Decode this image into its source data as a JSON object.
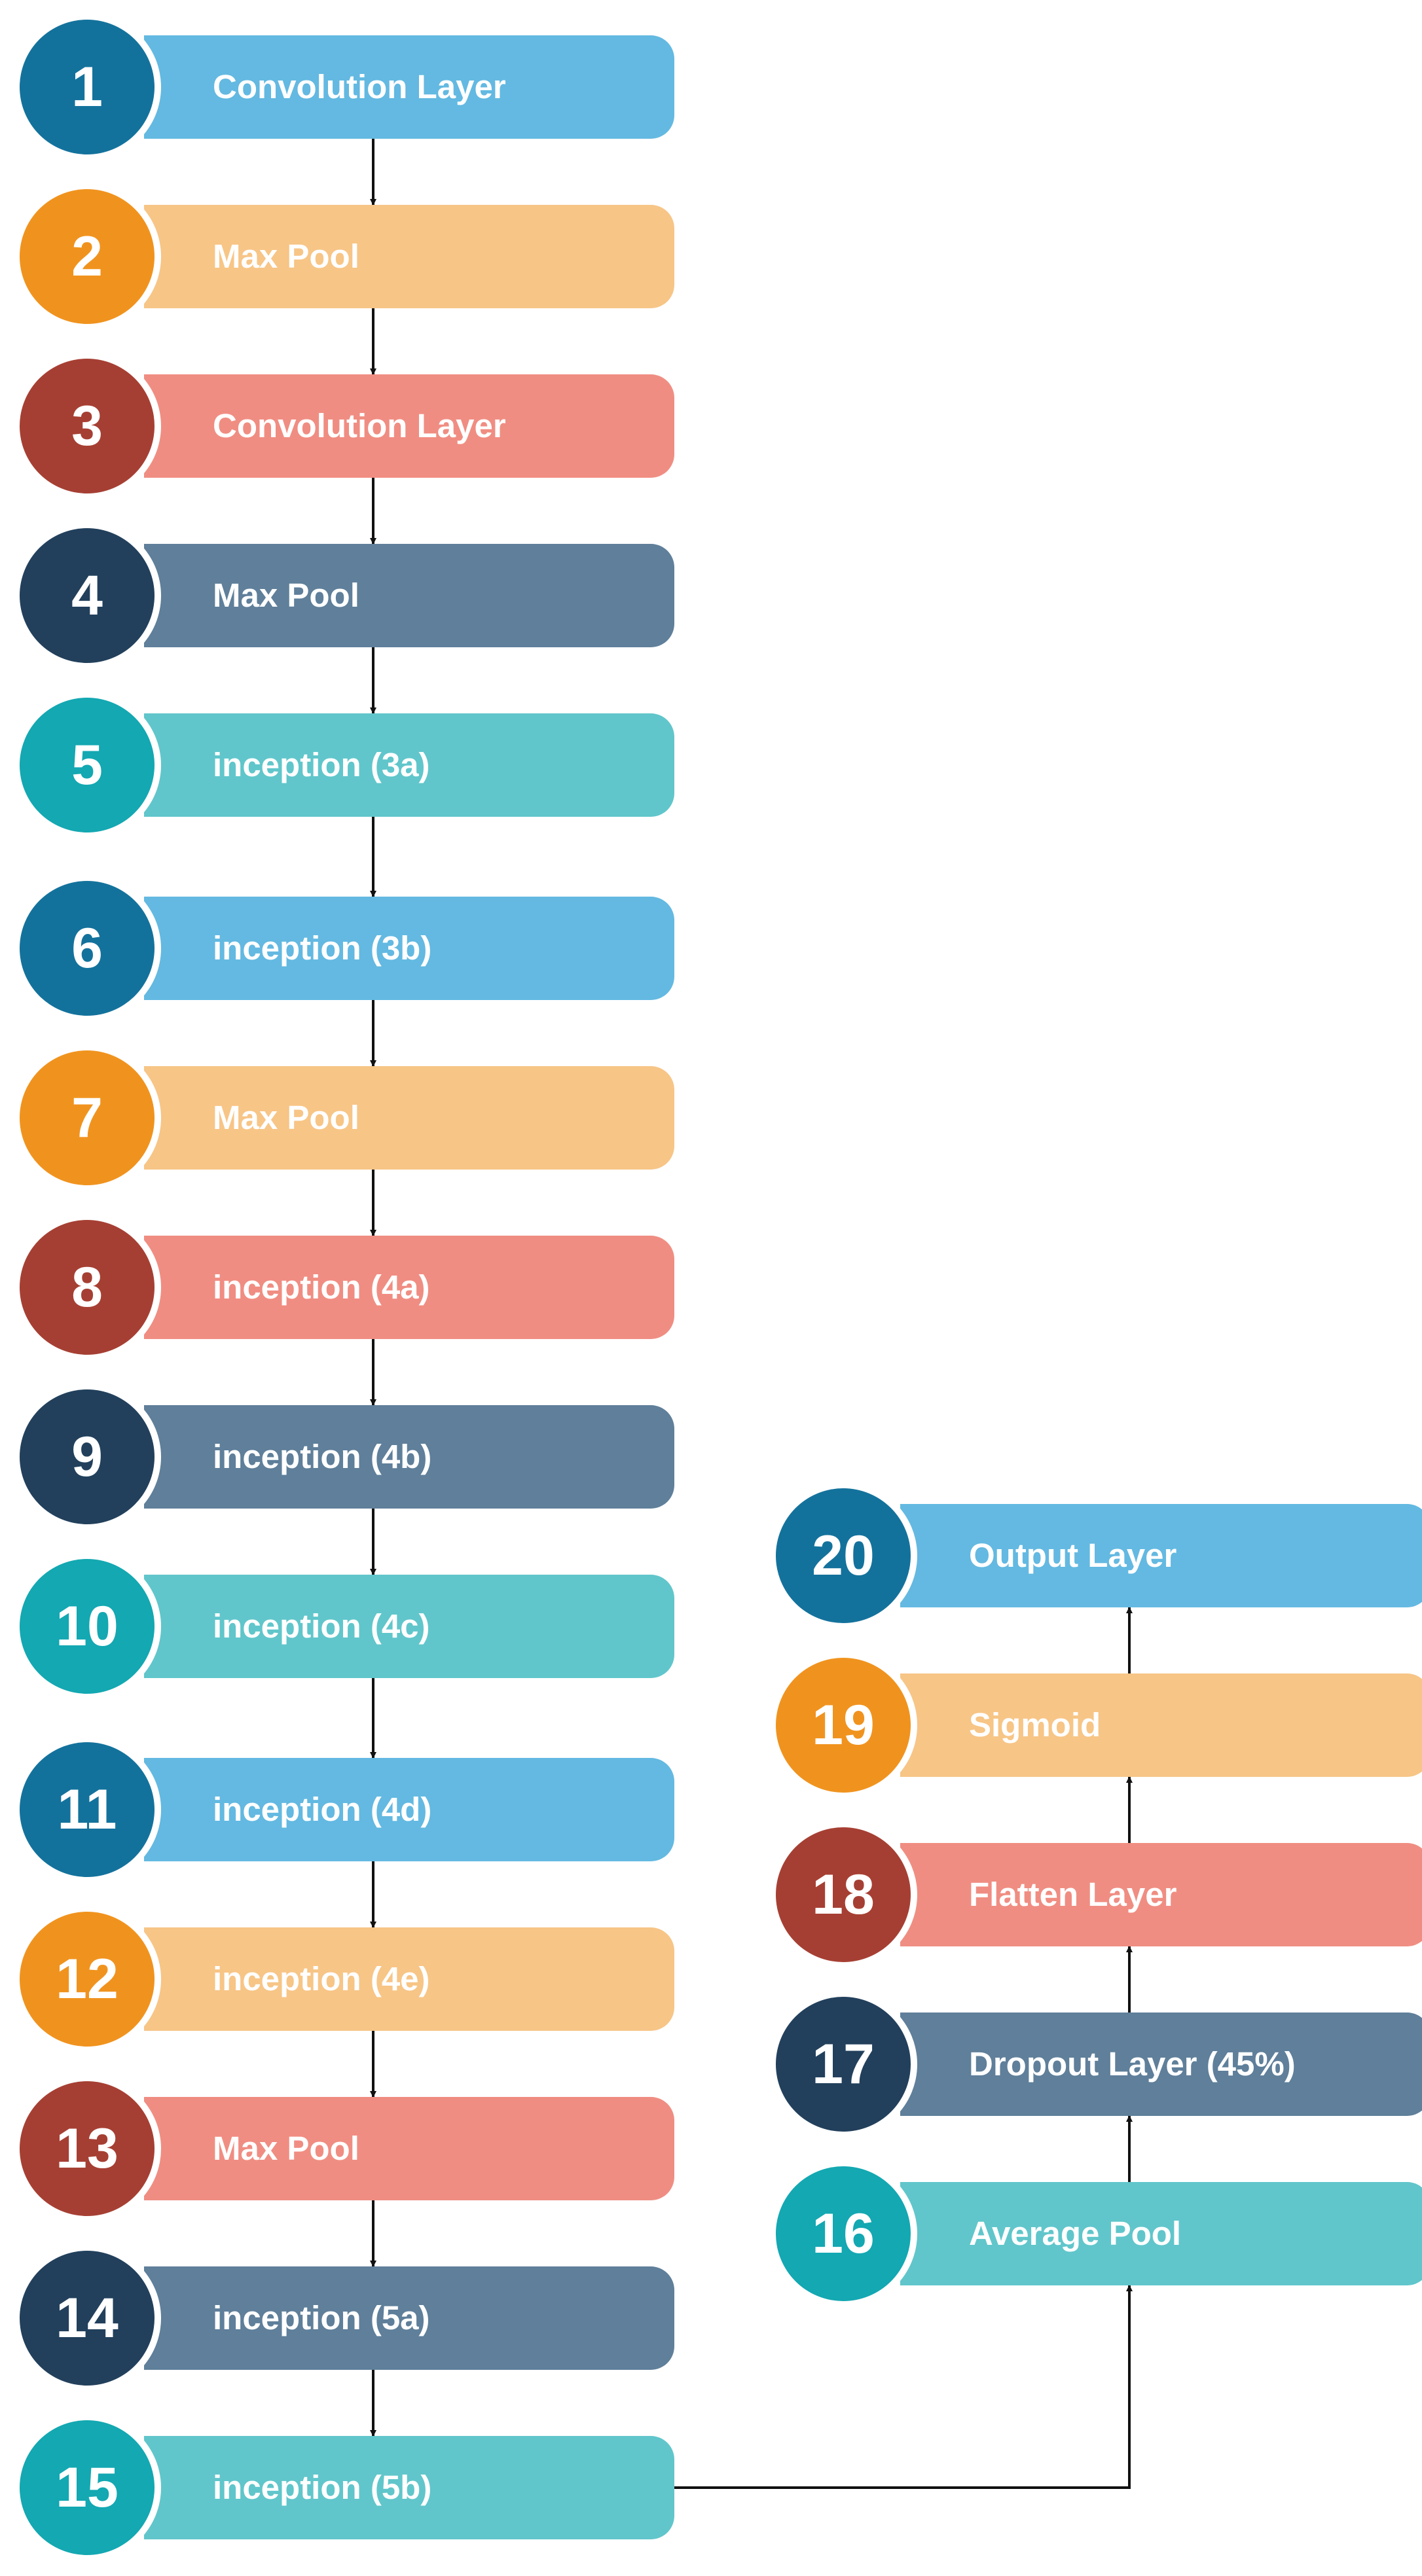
{
  "palette": {
    "blue": {
      "dark": "#13729c",
      "light": "#63b9e1"
    },
    "orange": {
      "dark": "#f0931e",
      "light": "#f7c586"
    },
    "red": {
      "dark": "#a63f33",
      "light": "#f08d82"
    },
    "navy": {
      "dark": "#22405c",
      "light": "#5f7f9a"
    },
    "teal": {
      "dark": "#13a8b2",
      "light": "#60c6cb"
    }
  },
  "arrow_color": "#111111",
  "steps": [
    {
      "number": "1",
      "label": "Convolution Layer",
      "color": "blue"
    },
    {
      "number": "2",
      "label": "Max Pool",
      "color": "orange"
    },
    {
      "number": "3",
      "label": "Convolution Layer",
      "color": "red"
    },
    {
      "number": "4",
      "label": "Max Pool",
      "color": "navy"
    },
    {
      "number": "5",
      "label": "inception (3a)",
      "color": "teal"
    },
    {
      "number": "6",
      "label": "inception (3b)",
      "color": "blue"
    },
    {
      "number": "7",
      "label": "Max Pool",
      "color": "orange"
    },
    {
      "number": "8",
      "label": "inception (4a)",
      "color": "red"
    },
    {
      "number": "9",
      "label": "inception (4b)",
      "color": "navy"
    },
    {
      "number": "10",
      "label": "inception (4c)",
      "color": "teal"
    },
    {
      "number": "11",
      "label": "inception (4d)",
      "color": "blue"
    },
    {
      "number": "12",
      "label": "inception (4e)",
      "color": "orange"
    },
    {
      "number": "13",
      "label": "Max Pool",
      "color": "red"
    },
    {
      "number": "14",
      "label": "inception (5a)",
      "color": "navy"
    },
    {
      "number": "15",
      "label": "inception (5b)",
      "color": "teal"
    },
    {
      "number": "16",
      "label": "Average Pool",
      "color": "teal"
    },
    {
      "number": "17",
      "label": "Dropout Layer (45%)",
      "color": "navy"
    },
    {
      "number": "18",
      "label": "Flatten Layer",
      "color": "red"
    },
    {
      "number": "19",
      "label": "Sigmoid",
      "color": "orange"
    },
    {
      "number": "20",
      "label": "Output Layer",
      "color": "blue"
    }
  ]
}
